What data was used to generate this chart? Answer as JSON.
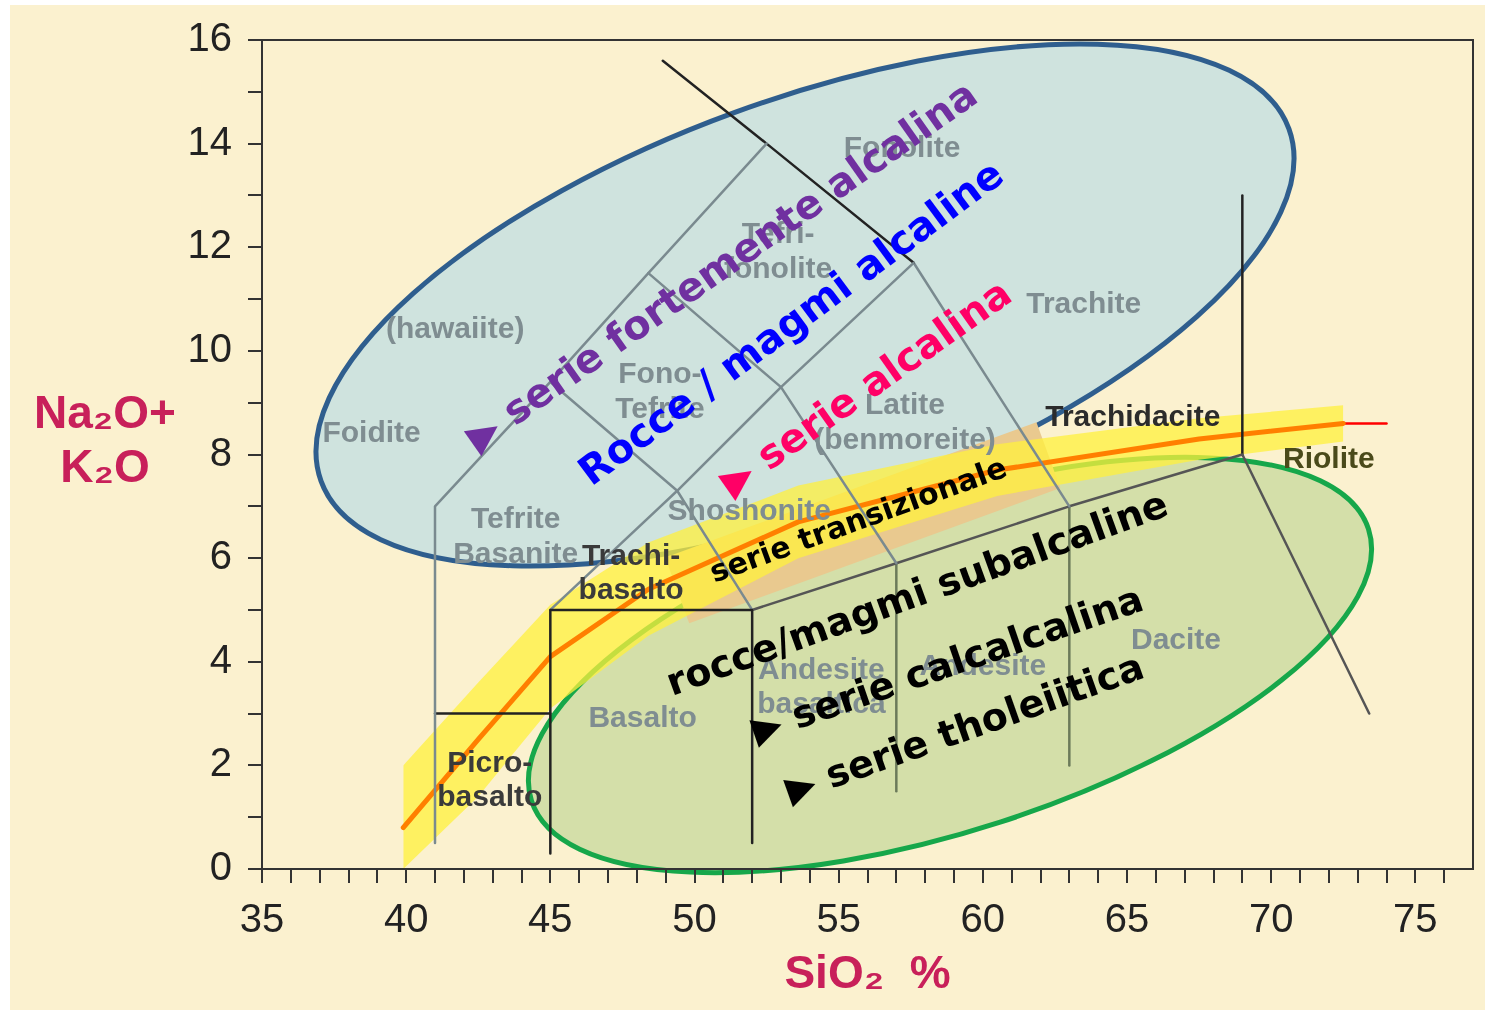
{
  "chart_data": {
    "type": "line",
    "xlabel": "SiO₂  %",
    "ylabel": "Na₂O+ K₂O",
    "xlim": [
      35,
      77
    ],
    "ylim": [
      0,
      16
    ],
    "xticks": [
      35,
      {
        "value": 36,
        "label": null
      },
      {
        "value": 37,
        "label": null
      },
      {
        "value": 38,
        "label": null
      },
      {
        "value": 39,
        "label": null
      },
      40,
      {
        "value": 41,
        "label": null
      },
      {
        "value": 42,
        "label": null
      },
      {
        "value": 43,
        "label": null
      },
      {
        "value": 44,
        "label": null
      },
      45,
      {
        "value": 46,
        "label": null
      },
      {
        "value": 47,
        "label": null
      },
      {
        "value": 48,
        "label": null
      },
      {
        "value": 49,
        "label": null
      },
      50,
      {
        "value": 51,
        "label": null
      },
      {
        "value": 52,
        "label": null
      },
      {
        "value": 53,
        "label": null
      },
      {
        "value": 54,
        "label": null
      },
      55,
      {
        "value": 56,
        "label": null
      },
      {
        "value": 57,
        "label": null
      },
      {
        "value": 58,
        "label": null
      },
      {
        "value": 59,
        "label": null
      },
      60,
      {
        "value": 61,
        "label": null
      },
      {
        "value": 62,
        "label": null
      },
      {
        "value": 63,
        "label": null
      },
      {
        "value": 64,
        "label": null
      },
      65,
      {
        "value": 66,
        "label": null
      },
      {
        "value": 67,
        "label": null
      },
      {
        "value": 68,
        "label": null
      },
      {
        "value": 69,
        "label": null
      },
      70,
      {
        "value": 71,
        "label": null
      },
      {
        "value": 72,
        "label": null
      },
      {
        "value": 73,
        "label": null
      },
      {
        "value": 74,
        "label": null
      },
      75,
      {
        "value": 76,
        "label": null
      }
    ],
    "yticks": [
      0,
      {
        "value": 1,
        "label": null
      },
      2,
      {
        "value": 3,
        "label": null
      },
      4,
      {
        "value": 5,
        "label": null
      },
      6,
      {
        "value": 7,
        "label": null
      },
      8,
      {
        "value": 9,
        "label": null
      },
      10,
      {
        "value": 11,
        "label": null
      },
      12,
      {
        "value": 13,
        "label": null
      },
      14,
      {
        "value": 15,
        "label": null
      },
      16
    ],
    "marker": "none",
    "line_style": "solid",
    "legend": false,
    "series": [
      {
        "color": "#7a8a8f",
        "x": [
          41,
          41,
          45,
          48.4,
          52.5
        ],
        "values": [
          0.5,
          7,
          9.4,
          11.5,
          14
        ]
      },
      {
        "color": "#222222",
        "x": [
          41,
          45
        ],
        "values": [
          3,
          3
        ]
      },
      {
        "color": "#222222",
        "x": [
          45,
          45,
          52,
          52
        ],
        "values": [
          0.3,
          5,
          5,
          0.5
        ]
      },
      {
        "color": "#7a8a8f",
        "x": [
          45,
          49.4,
          53,
          57.6
        ],
        "values": [
          5,
          7.3,
          9.3,
          11.7
        ]
      },
      {
        "color": "#222222",
        "x": [
          48.9,
          52.5,
          57.6
        ],
        "values": [
          15.6,
          14,
          11.7
        ]
      },
      {
        "color": "#7a8a8f",
        "x": [
          52,
          49.4,
          45
        ],
        "values": [
          5,
          7.3,
          9.4
        ]
      },
      {
        "color": "#7a8a8f",
        "x": [
          57,
          53,
          48.4
        ],
        "values": [
          5.9,
          9.3,
          11.5
        ]
      },
      {
        "color": "#7a8a8f",
        "x": [
          63,
          57.6
        ],
        "values": [
          7,
          11.7
        ]
      },
      {
        "color": "#555555",
        "x": [
          52,
          57,
          63,
          69,
          73.4
        ],
        "values": [
          5,
          5.9,
          7,
          8,
          3
        ]
      },
      {
        "color": "#6b7a5a",
        "x": [
          57,
          57
        ],
        "values": [
          1.5,
          5.9
        ]
      },
      {
        "color": "#6b7a5a",
        "x": [
          63,
          63
        ],
        "values": [
          2,
          7
        ]
      },
      {
        "color": "#222222",
        "x": [
          69,
          69
        ],
        "values": [
          8,
          13
        ]
      },
      {
        "color": "#ff7f00",
        "x": [
          39.9,
          42.5,
          45,
          48.4,
          53.6,
          60.5,
          67.5,
          72.5
        ],
        "values": [
          0.8,
          2.5,
          4.1,
          5.4,
          6.7,
          7.7,
          8.3,
          8.6
        ],
        "lower": [
          0,
          1.4,
          3.1,
          4.5,
          6.0,
          7.2,
          7.9,
          8.25
        ],
        "upper": [
          2.0,
          3.6,
          5.1,
          6.3,
          7.4,
          8.2,
          8.7,
          8.95
        ]
      },
      {
        "color": "#ff0000",
        "x": [
          72.5,
          74
        ],
        "values": [
          8.6,
          8.6
        ]
      }
    ],
    "annotations": [
      "Foidite",
      "(hawaiite)",
      "Fonolite",
      "Tefri-\nfonolite",
      "Fono-\nTefrite",
      "Latite\n(benmoreite)",
      "Trachite",
      "Trachidacite",
      "Riolite",
      "Tefrite\nBasanite",
      "Shoshonite",
      "Trachi-\nbasalto",
      "Dacite",
      "Andesite",
      "Andesite\nbasaltica",
      "Basalto",
      "Picro-\nbasalto",
      "▶ serie fortemente alcalina",
      "Rocce / magmi alcaline",
      "▶ serie alcalina",
      "serie transizionale",
      "rocce/magmi subalcaline",
      "▶ serie calcalcalina",
      "▶ serie tholeiitica"
    ]
  }
}
